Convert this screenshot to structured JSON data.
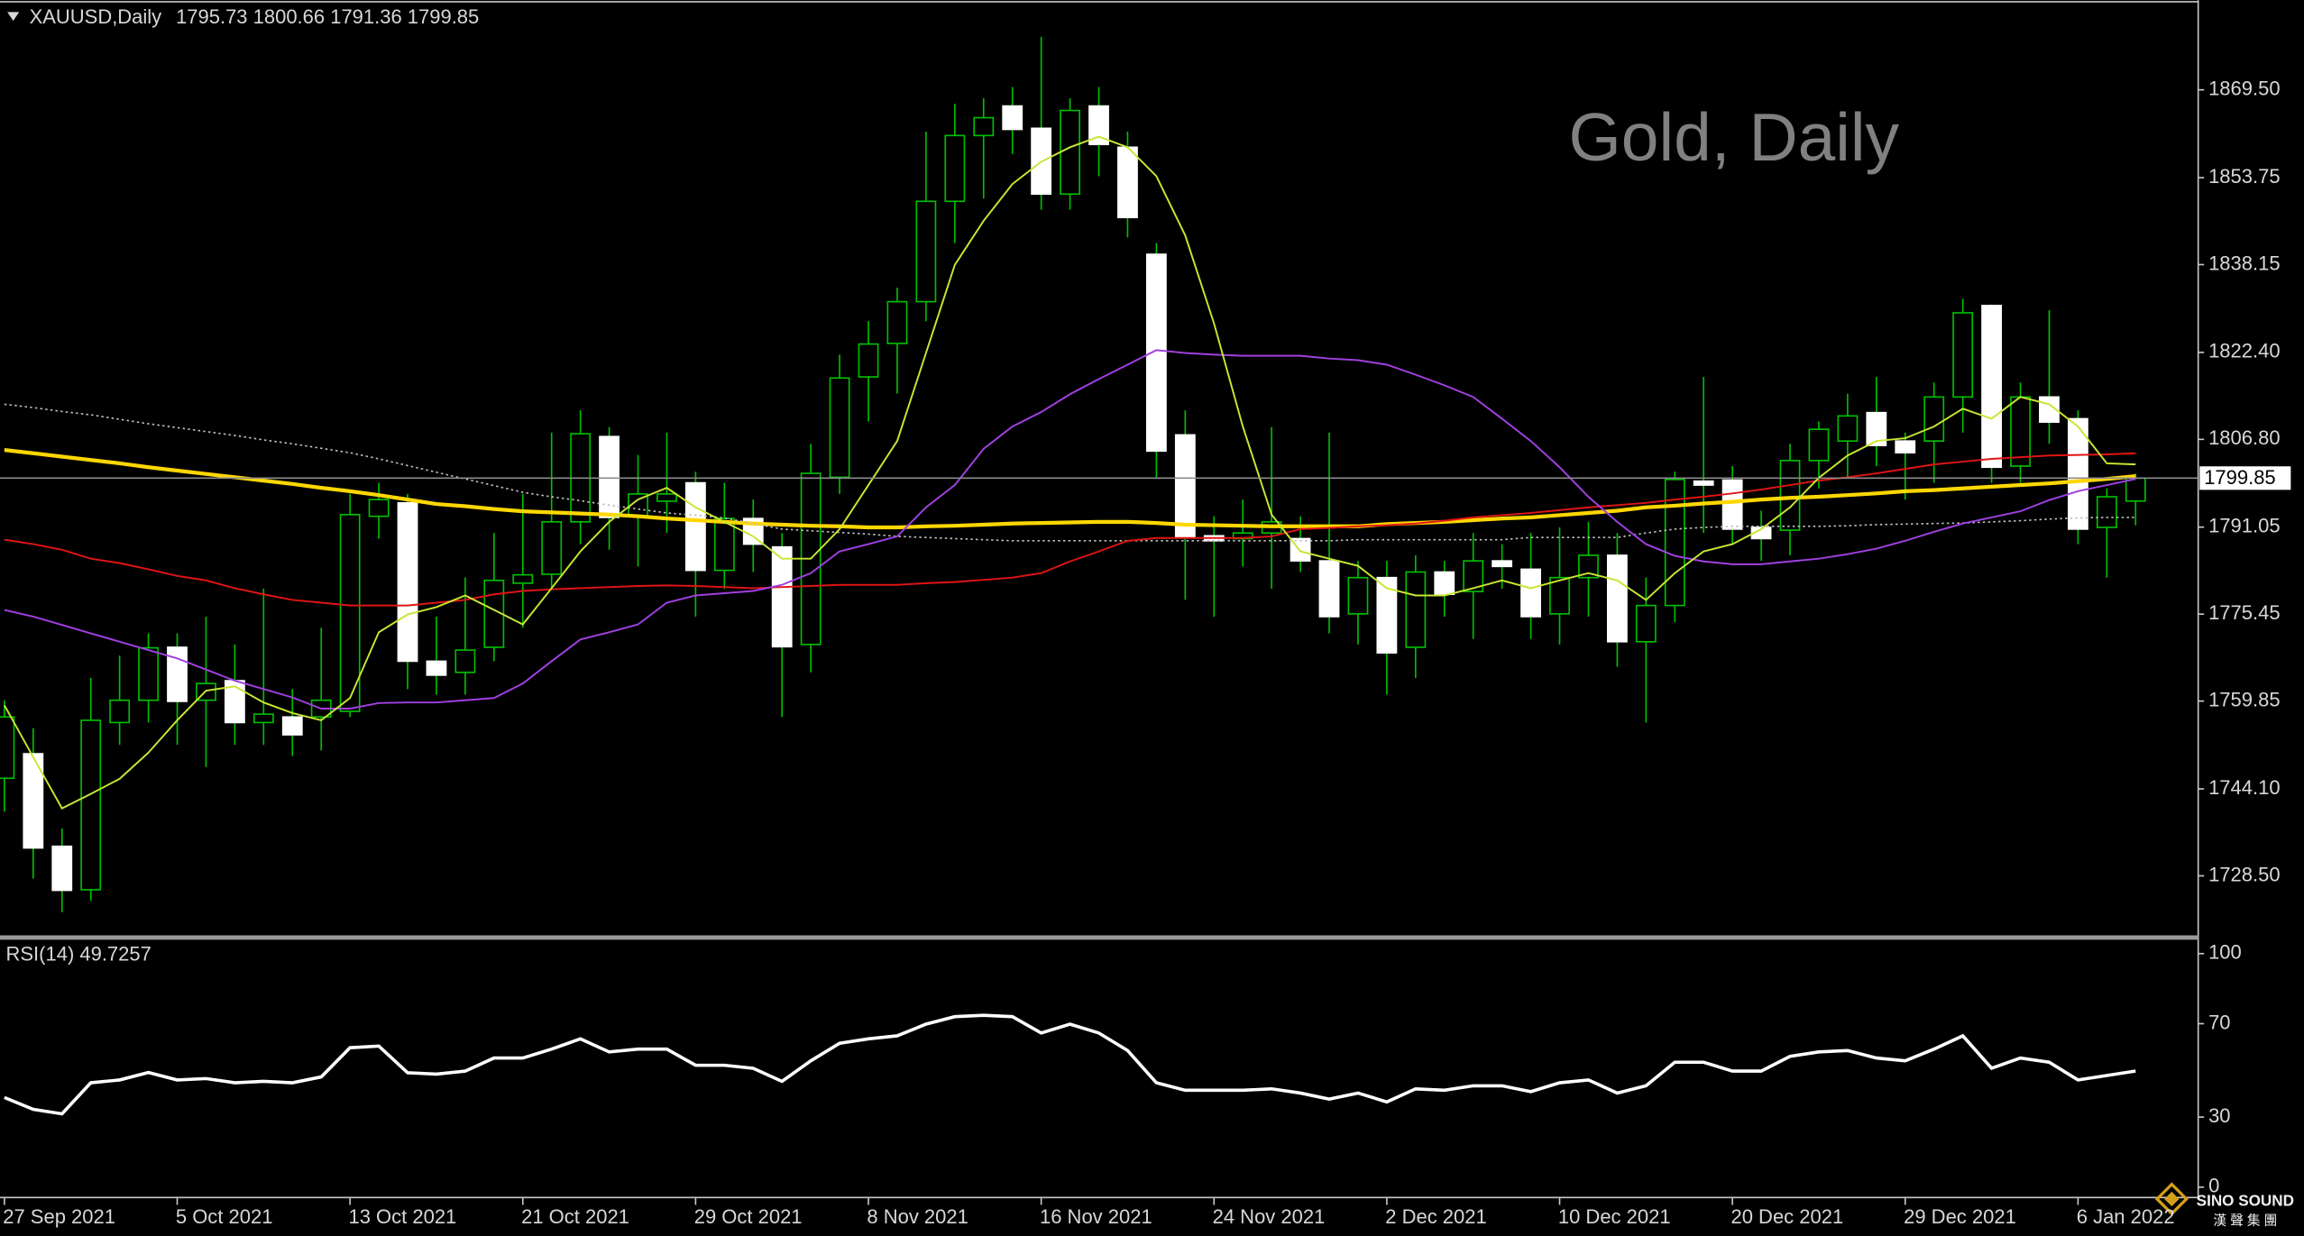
{
  "chart_data": [
    {
      "type": "candlestick",
      "symbol": "XAUUSD,Daily",
      "watermark": "Gold, Daily",
      "categories": [
        "27 Sep 2021",
        null,
        null,
        null,
        null,
        null,
        "5 Oct 2021",
        null,
        null,
        null,
        null,
        null,
        "13 Oct 2021",
        null,
        null,
        null,
        null,
        null,
        "21 Oct 2021",
        null,
        null,
        null,
        null,
        null,
        "29 Oct 2021",
        null,
        null,
        null,
        null,
        null,
        "8 Nov 2021",
        null,
        null,
        null,
        null,
        null,
        "16 Nov 2021",
        null,
        null,
        null,
        null,
        null,
        "24 Nov 2021",
        null,
        null,
        null,
        null,
        null,
        "2 Dec 2021",
        null,
        null,
        null,
        null,
        null,
        "10 Dec 2021",
        null,
        null,
        null,
        null,
        null,
        "20 Dec 2021",
        null,
        null,
        null,
        null,
        null,
        "29 Dec 2021",
        null,
        null,
        null,
        null,
        null,
        "6 Jan 2022",
        null,
        null
      ],
      "open": [
        1746,
        1750.4,
        1733.8,
        1726,
        1756,
        1760,
        1769.5,
        1760,
        1763.5,
        1756,
        1757,
        1757,
        1758,
        1793,
        1795.4,
        1767,
        1765,
        1769.5,
        1781,
        1782.6,
        1792,
        1807.3,
        1793,
        1795.7,
        1799,
        1783.3,
        1792.6,
        1787.5,
        1770,
        1800,
        1818,
        1824,
        1831.5,
        1849.5,
        1861.3,
        1866.6,
        1862.6,
        1850.8,
        1866.6,
        1859.2,
        1840,
        1807.6,
        1789.5,
        1789,
        1790,
        1789,
        1785,
        1775.5,
        1782,
        1769.5,
        1783,
        1779.5,
        1785,
        1783.5,
        1775.5,
        1782,
        1786,
        1770.5,
        1777,
        1799.3,
        1799.5,
        1791,
        1790.5,
        1803,
        1806.5,
        1811.6,
        1806.5,
        1806.5,
        1814.4,
        1830.8,
        1802,
        1814.4,
        1810.5,
        1791,
        1795.73
      ],
      "high": [
        1760,
        1755,
        1737,
        1764,
        1768,
        1772,
        1772,
        1775,
        1770,
        1780,
        1762,
        1773,
        1797,
        1799,
        1797,
        1775,
        1782,
        1790,
        1797,
        1808,
        1812,
        1809,
        1804,
        1808,
        1801,
        1799,
        1796,
        1790,
        1806,
        1822,
        1828,
        1834,
        1862,
        1867,
        1868,
        1870,
        1879,
        1868,
        1870,
        1862,
        1842,
        1812,
        1793,
        1796,
        1809,
        1793,
        1808,
        1785,
        1785,
        1786,
        1785,
        1790,
        1788,
        1790,
        1791,
        1792,
        1790,
        1782,
        1801,
        1818,
        1802,
        1794,
        1806,
        1810,
        1815,
        1818,
        1808,
        1817,
        1832,
        1831,
        1817,
        1830,
        1812,
        1798,
        1800.66
      ],
      "low": [
        1740,
        1728,
        1722,
        1724,
        1752,
        1756,
        1752,
        1748,
        1752,
        1752,
        1750,
        1751,
        1757,
        1789,
        1762,
        1761,
        1761,
        1767,
        1773,
        1780,
        1788,
        1787,
        1784,
        1790,
        1775,
        1780,
        1783,
        1757,
        1765,
        1797,
        1810,
        1815,
        1828,
        1842,
        1850,
        1858,
        1848,
        1848,
        1854,
        1843,
        1800,
        1778,
        1775,
        1784,
        1780,
        1783,
        1772,
        1770,
        1761,
        1764,
        1775,
        1771,
        1780,
        1771,
        1770,
        1775,
        1766,
        1756,
        1774,
        1790,
        1788,
        1785,
        1786,
        1798,
        1800,
        1802,
        1796,
        1799,
        1808,
        1799,
        1799,
        1806,
        1788,
        1782,
        1791.36
      ],
      "close": [
        1757,
        1733.5,
        1725.9,
        1756.4,
        1760,
        1769.4,
        1759.8,
        1763,
        1756,
        1757.5,
        1753.8,
        1760,
        1793.3,
        1796,
        1767,
        1764.5,
        1769,
        1781.5,
        1782.5,
        1792,
        1807.8,
        1792.8,
        1797,
        1797,
        1783.3,
        1792.6,
        1788,
        1769.6,
        1800.7,
        1817.8,
        1823.9,
        1831.5,
        1849.5,
        1861.3,
        1864.5,
        1862.4,
        1850.8,
        1865.8,
        1859.7,
        1846.6,
        1804.7,
        1789.1,
        1788.6,
        1790,
        1792,
        1785,
        1775,
        1782,
        1768.5,
        1783,
        1779,
        1785,
        1784,
        1775,
        1782,
        1786,
        1770.5,
        1777,
        1799.6,
        1798.6,
        1790.7,
        1789,
        1803,
        1808.6,
        1811,
        1805.7,
        1804.4,
        1814.4,
        1829.5,
        1801.8,
        1814.4,
        1809.9,
        1790.7,
        1796.5,
        1799.85
      ],
      "up_color": "#00c000",
      "down_color": "#ffffff",
      "lines": [
        {
          "color": "#ffd700",
          "style": "thick",
          "values": [
            1804.9,
            1804.3,
            1803.7,
            1803.1,
            1802.5,
            1801.8,
            1801.2,
            1800.6,
            1800,
            1799.4,
            1798.8,
            1798.1,
            1797.5,
            1796.8,
            1796,
            1795.2,
            1794.8,
            1794.3,
            1793.9,
            1793.7,
            1793.5,
            1793.3,
            1793,
            1792.6,
            1792.3,
            1792,
            1791.7,
            1791.5,
            1791.3,
            1791.2,
            1791,
            1791,
            1791.2,
            1791.3,
            1791.5,
            1791.7,
            1791.8,
            1791.9,
            1792,
            1792,
            1791.8,
            1791.5,
            1791.4,
            1791.3,
            1791.2,
            1791.2,
            1791.2,
            1791.2,
            1791.6,
            1791.8,
            1792,
            1792.3,
            1792.6,
            1792.8,
            1793.2,
            1793.6,
            1794,
            1794.6,
            1794.9,
            1795.3,
            1795.6,
            1796,
            1796.3,
            1796.5,
            1796.8,
            1797.1,
            1797.5,
            1797.7,
            1798,
            1798.3,
            1798.6,
            1798.9,
            1799.3,
            1799.7,
            1800.2
          ]
        },
        {
          "color": "#bfbfbf",
          "style": "dotted",
          "values": [
            1813.1,
            1812.5,
            1811.8,
            1811.2,
            1810.4,
            1809.6,
            1808.9,
            1808.2,
            1807.5,
            1806.7,
            1806,
            1805.2,
            1804.4,
            1803.3,
            1802.1,
            1800.9,
            1799.7,
            1798.5,
            1797.3,
            1796.5,
            1795.8,
            1795,
            1794.3,
            1793.6,
            1793.2,
            1792.7,
            1791.7,
            1790.7,
            1790.4,
            1790.1,
            1789.8,
            1789.4,
            1789.2,
            1789,
            1788.8,
            1788.6,
            1788.6,
            1788.6,
            1788.6,
            1788.6,
            1788.6,
            1788.6,
            1788.6,
            1788.6,
            1788.6,
            1788.6,
            1788.6,
            1788.8,
            1788.8,
            1788.8,
            1788.8,
            1788.8,
            1788.8,
            1789.2,
            1789.2,
            1789.2,
            1789.2,
            1790,
            1790.7,
            1791,
            1791.2,
            1791.2,
            1791.2,
            1791.2,
            1791.3,
            1791.5,
            1791.6,
            1791.7,
            1791.8,
            1792,
            1792.2,
            1792.5,
            1792.7,
            1792.8,
            1792.8
          ]
        },
        {
          "color": "#e01414",
          "style": "thin",
          "values": [
            1788.8,
            1788,
            1787,
            1785.4,
            1784.6,
            1783.5,
            1782.3,
            1781.5,
            1780.1,
            1779,
            1778,
            1777.5,
            1777,
            1777,
            1777,
            1777.5,
            1778,
            1779,
            1779.6,
            1779.9,
            1780.1,
            1780.3,
            1780.5,
            1780.6,
            1780.5,
            1780.3,
            1780.1,
            1780.3,
            1780.5,
            1780.7,
            1780.7,
            1780.7,
            1781,
            1781.2,
            1781.6,
            1782,
            1782.8,
            1784.9,
            1786.7,
            1788.6,
            1789.1,
            1789.1,
            1789.1,
            1789.1,
            1789.4,
            1790.7,
            1790.9,
            1791.2,
            1791.4,
            1791.7,
            1792.2,
            1792.8,
            1793.2,
            1793.6,
            1794.1,
            1794.6,
            1795,
            1795.4,
            1796,
            1796.5,
            1797.1,
            1797.8,
            1798.6,
            1799.4,
            1800,
            1800.7,
            1801.5,
            1802.3,
            1802.8,
            1803.3,
            1803.6,
            1803.9,
            1804,
            1804.1,
            1804.3
          ]
        },
        {
          "color": "#a040e0",
          "style": "thin",
          "values": [
            1776.2,
            1775,
            1773.5,
            1772,
            1770.5,
            1769,
            1767.5,
            1765.5,
            1763.5,
            1762,
            1760.5,
            1758.5,
            1758.5,
            1759.5,
            1759.6,
            1759.6,
            1760,
            1760.4,
            1763,
            1767,
            1770.9,
            1772.2,
            1773.6,
            1777.5,
            1778.8,
            1779.2,
            1779.6,
            1780.7,
            1782.8,
            1786.7,
            1788,
            1789.4,
            1794.6,
            1798.6,
            1805.1,
            1809.1,
            1811.7,
            1814.9,
            1817.6,
            1820.2,
            1822.8,
            1822.3,
            1822,
            1821.8,
            1821.8,
            1821.8,
            1821.3,
            1821,
            1820.2,
            1818.4,
            1816.5,
            1814.4,
            1810.5,
            1806.5,
            1801.8,
            1796.5,
            1792,
            1788,
            1785.9,
            1784.9,
            1784.4,
            1784.4,
            1784.9,
            1785.4,
            1786.2,
            1787.2,
            1788.6,
            1790.2,
            1791.7,
            1792.8,
            1793.9,
            1795.9,
            1797.5,
            1798.6,
            1799.7
          ]
        },
        {
          "color": "#c8e632",
          "style": "thin",
          "values": [
            1759.1,
            1749.8,
            1740.6,
            1743.2,
            1745.9,
            1750.6,
            1756.4,
            1761.7,
            1762.5,
            1759.6,
            1757.7,
            1756.4,
            1760.4,
            1772.2,
            1775.4,
            1776.7,
            1778.8,
            1776.2,
            1773.6,
            1780.1,
            1786.7,
            1792,
            1796,
            1798.1,
            1794.6,
            1792,
            1789.4,
            1785.4,
            1785.4,
            1790.7,
            1798.6,
            1806.5,
            1822.3,
            1838.1,
            1846,
            1852.6,
            1856.6,
            1859.2,
            1861.1,
            1859.2,
            1854,
            1843.4,
            1827.6,
            1809.1,
            1793.3,
            1786.7,
            1785.4,
            1784.1,
            1780.1,
            1778.8,
            1778.8,
            1780.1,
            1781.5,
            1780.1,
            1781.5,
            1782.8,
            1781.5,
            1778,
            1782.8,
            1786.7,
            1788,
            1790.7,
            1794.6,
            1799.9,
            1803.9,
            1806.5,
            1807,
            1809.1,
            1812.3,
            1810.5,
            1814.4,
            1813.1,
            1809.1,
            1802.5,
            1802.3
          ]
        }
      ],
      "ylim": [
        1717.7,
        1885.3
      ],
      "yticks": [
        {
          "value": 1869.5,
          "label": "1869.50"
        },
        1853.75,
        1838.15,
        {
          "value": 1822.4,
          "label": "1822.40"
        },
        {
          "value": 1806.8,
          "label": "1806.80"
        },
        1791.05,
        1775.45,
        1759.85,
        {
          "value": 1744.1,
          "label": "1744.10"
        },
        {
          "value": 1728.5,
          "label": "1728.50"
        }
      ]
    },
    {
      "type": "line",
      "title": "RSI(14)",
      "color": "#ffffff",
      "values": [
        38.4,
        33.3,
        31.4,
        44.7,
        45.9,
        49.1,
        45.9,
        46.5,
        44.7,
        45.3,
        44.7,
        47.2,
        59.7,
        60.4,
        49,
        48.4,
        49.7,
        55.3,
        55.3,
        59.1,
        63.5,
        57.9,
        59.1,
        59.1,
        52.2,
        52.2,
        50.9,
        45.3,
        54.1,
        61.6,
        63.5,
        64.8,
        69.8,
        73,
        73.6,
        73,
        66,
        69.8,
        66,
        58.5,
        44.7,
        41.5,
        41.5,
        41.5,
        42.1,
        40.3,
        37.7,
        40.3,
        36.5,
        42.1,
        41.5,
        43.4,
        43.4,
        40.9,
        44.7,
        45.9,
        40.3,
        43.4,
        53.5,
        53.5,
        49.7,
        49.7,
        56,
        57.9,
        58.5,
        55.3,
        54.1,
        59.1,
        64.8,
        50.9,
        55.3,
        53.5,
        45.9,
        47.8,
        49.7257
      ],
      "ylim": [
        -3.8,
        105
      ],
      "yticks": [
        100,
        70,
        30,
        0
      ]
    }
  ],
  "logo": {
    "name": "SINO SOUND",
    "subtitle": "漢 聲 集 團"
  }
}
